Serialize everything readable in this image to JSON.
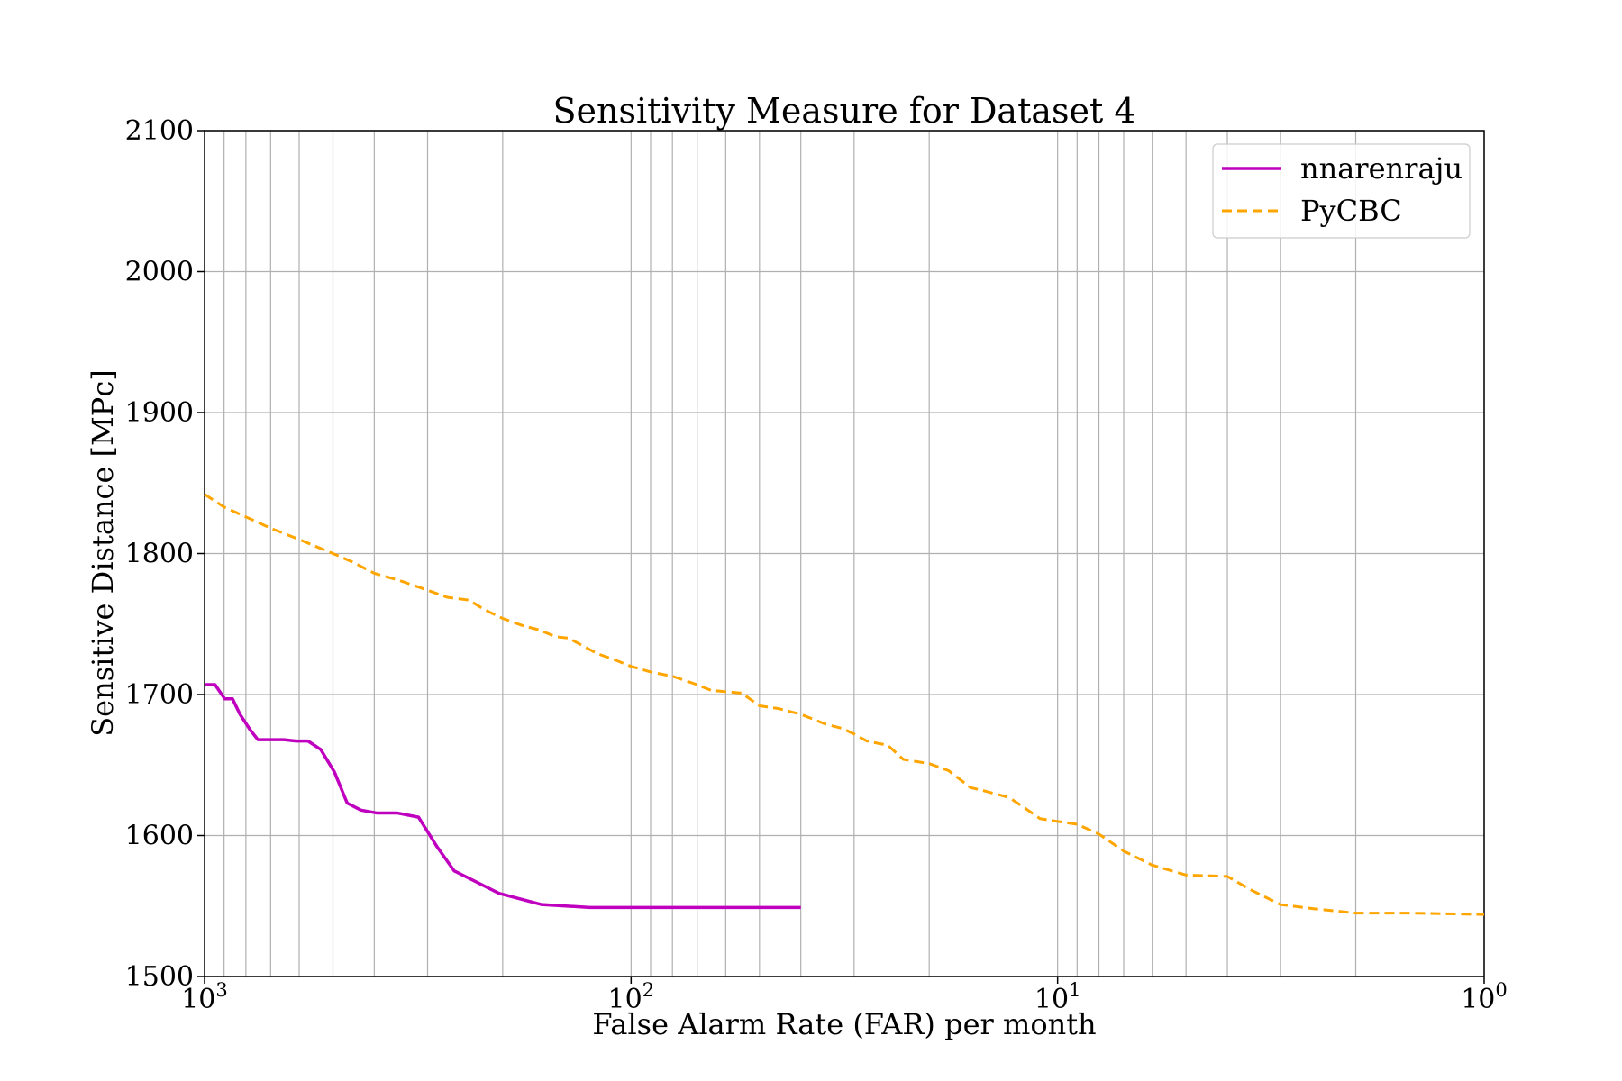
{
  "chart_data": {
    "type": "line",
    "title": "Sensitivity Measure for Dataset 4",
    "xlabel": "False Alarm Rate (FAR) per month",
    "ylabel": "Sensitive Distance [MPc]",
    "x_scale": "log",
    "x_reversed": true,
    "xlim": [
      1000,
      1
    ],
    "ylim": [
      1500,
      2100
    ],
    "grid": true,
    "grid_minor_x": true,
    "legend_position": "top-right",
    "x_ticks": [
      {
        "value": 1000,
        "base": "10",
        "exp": "3"
      },
      {
        "value": 100,
        "base": "10",
        "exp": "2"
      },
      {
        "value": 10,
        "base": "10",
        "exp": "1"
      },
      {
        "value": 1,
        "base": "10",
        "exp": "0"
      }
    ],
    "y_ticks": [
      {
        "value": 1500,
        "label": "1500"
      },
      {
        "value": 1600,
        "label": "1600"
      },
      {
        "value": 1700,
        "label": "1700"
      },
      {
        "value": 1800,
        "label": "1800"
      },
      {
        "value": 1900,
        "label": "1900"
      },
      {
        "value": 2000,
        "label": "2000"
      },
      {
        "value": 2100,
        "label": "2100"
      }
    ],
    "series": [
      {
        "name": "nnarenraju",
        "color": "#bf00bf",
        "dash": "solid",
        "points": [
          [
            1000,
            1707
          ],
          [
            945,
            1707
          ],
          [
            897,
            1697
          ],
          [
            860,
            1697
          ],
          [
            826,
            1686
          ],
          [
            782,
            1675
          ],
          [
            750,
            1668
          ],
          [
            700,
            1668
          ],
          [
            652,
            1668
          ],
          [
            610,
            1667
          ],
          [
            572,
            1667
          ],
          [
            534,
            1661
          ],
          [
            496,
            1645
          ],
          [
            463,
            1623
          ],
          [
            430,
            1618
          ],
          [
            395,
            1616
          ],
          [
            354,
            1616
          ],
          [
            315,
            1613
          ],
          [
            285,
            1592
          ],
          [
            260,
            1575
          ],
          [
            204,
            1559
          ],
          [
            162,
            1551
          ],
          [
            125,
            1549
          ],
          [
            100,
            1549
          ],
          [
            70,
            1549
          ],
          [
            50,
            1549
          ],
          [
            40,
            1549
          ]
        ]
      },
      {
        "name": "PyCBC",
        "color": "#ffa500",
        "dash": "dashed",
        "points": [
          [
            1000,
            1842
          ],
          [
            900,
            1833
          ],
          [
            800,
            1826
          ],
          [
            700,
            1818
          ],
          [
            600,
            1810
          ],
          [
            500,
            1800
          ],
          [
            450,
            1794
          ],
          [
            400,
            1786
          ],
          [
            350,
            1781
          ],
          [
            300,
            1774
          ],
          [
            270,
            1769
          ],
          [
            240,
            1767
          ],
          [
            220,
            1760
          ],
          [
            200,
            1754
          ],
          [
            180,
            1749
          ],
          [
            165,
            1746
          ],
          [
            150,
            1741
          ],
          [
            140,
            1740
          ],
          [
            120,
            1729
          ],
          [
            110,
            1725
          ],
          [
            100,
            1720
          ],
          [
            90,
            1716
          ],
          [
            80,
            1713
          ],
          [
            70,
            1707
          ],
          [
            65,
            1703
          ],
          [
            55,
            1701
          ],
          [
            50,
            1692
          ],
          [
            45,
            1690
          ],
          [
            40,
            1686
          ],
          [
            35,
            1679
          ],
          [
            32,
            1676
          ],
          [
            30,
            1672
          ],
          [
            28,
            1667
          ],
          [
            25,
            1664
          ],
          [
            23,
            1654
          ],
          [
            20,
            1651
          ],
          [
            18,
            1646
          ],
          [
            16,
            1634
          ],
          [
            15,
            1632
          ],
          [
            13,
            1627
          ],
          [
            12,
            1620
          ],
          [
            11,
            1612
          ],
          [
            10,
            1610
          ],
          [
            9,
            1608
          ],
          [
            8,
            1601
          ],
          [
            7,
            1589
          ],
          [
            6,
            1579
          ],
          [
            5,
            1572
          ],
          [
            4,
            1571
          ],
          [
            3.5,
            1561
          ],
          [
            3,
            1551
          ],
          [
            2.5,
            1548
          ],
          [
            2,
            1545
          ],
          [
            1.5,
            1545
          ],
          [
            1,
            1544
          ]
        ]
      }
    ]
  }
}
